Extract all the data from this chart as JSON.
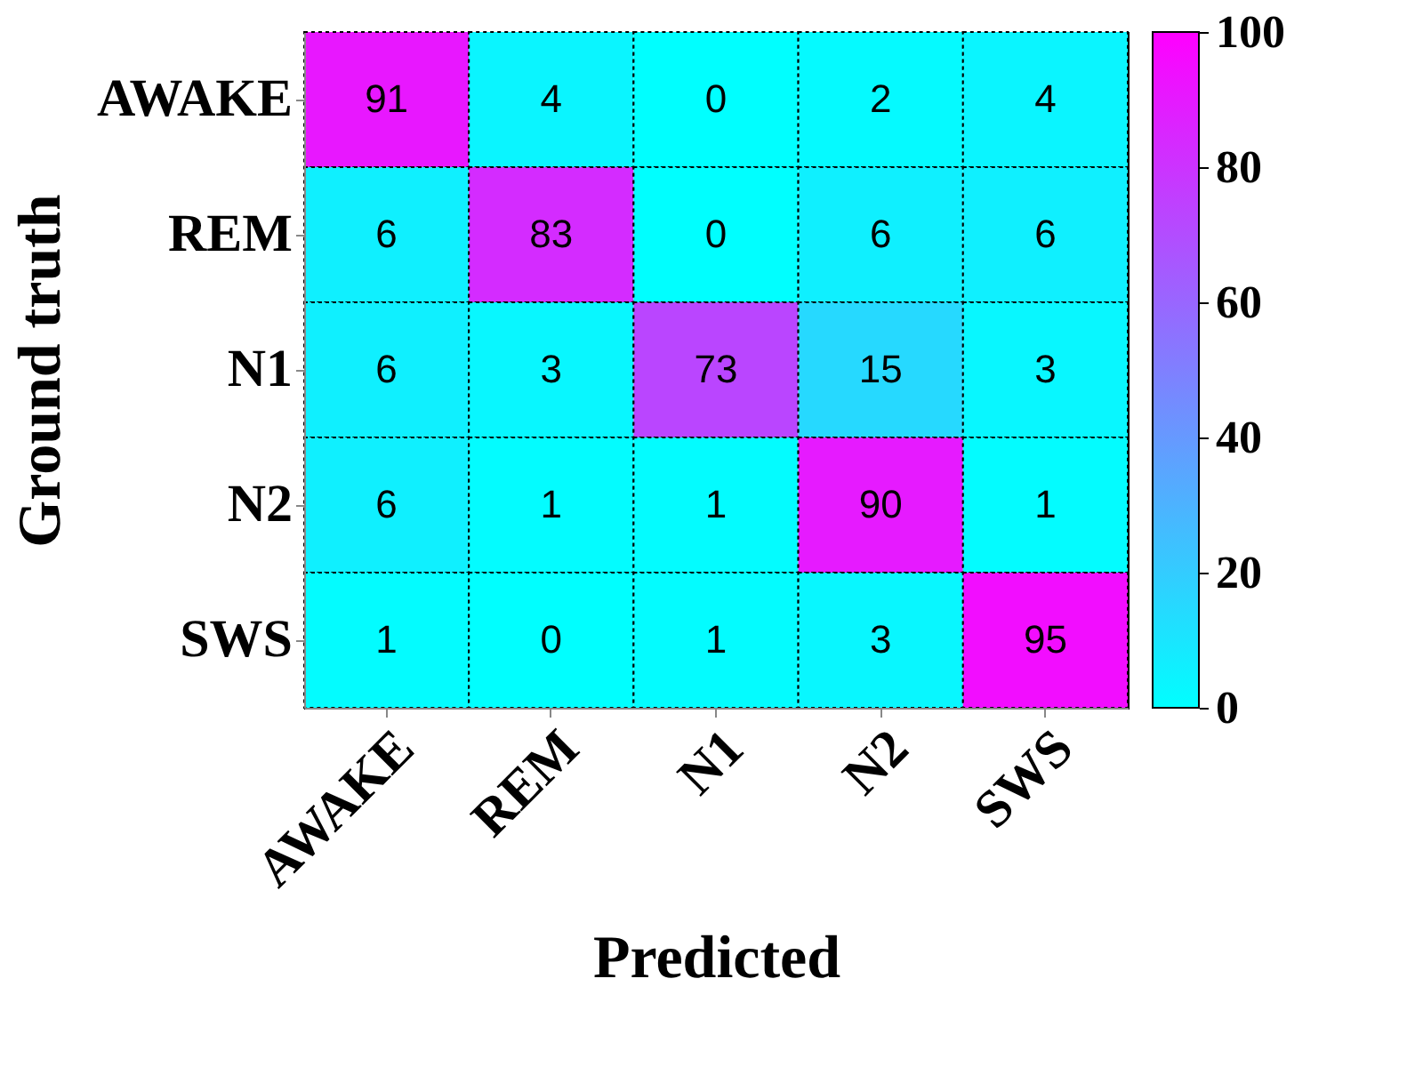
{
  "chart_data": {
    "type": "heatmap",
    "xlabel": "Predicted",
    "ylabel": "Ground truth",
    "categories": [
      "AWAKE",
      "REM",
      "N1",
      "N2",
      "SWS"
    ],
    "y_categories": [
      "AWAKE",
      "REM",
      "N1",
      "N2",
      "SWS"
    ],
    "cells": [
      [
        91,
        4,
        0,
        2,
        4
      ],
      [
        6,
        83,
        0,
        6,
        6
      ],
      [
        6,
        3,
        73,
        15,
        3
      ],
      [
        6,
        1,
        1,
        90,
        1
      ],
      [
        1,
        0,
        1,
        3,
        95
      ]
    ],
    "clim": [
      0,
      100
    ],
    "cticks": [
      0,
      20,
      40,
      60,
      80,
      100
    ],
    "data_labels": true
  }
}
